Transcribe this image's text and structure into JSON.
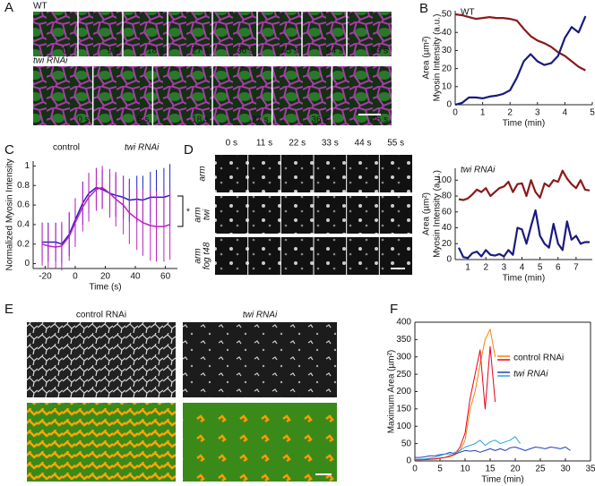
{
  "panels": {
    "A": {
      "letter": "A",
      "rows": [
        {
          "label": "WT",
          "times": [
            "0 s",
            "9 s",
            "18 s",
            "27 s",
            "36 s",
            "45 s",
            "54 s",
            "63 s"
          ]
        },
        {
          "label": "twi RNAi",
          "times": [
            "0 s",
            "9 s",
            "18 s",
            "27 s",
            "36 s",
            "45 s"
          ]
        }
      ]
    },
    "D": {
      "letter": "D",
      "times": [
        "0 s",
        "11 s",
        "22 s",
        "33 s",
        "44 s",
        "55 s"
      ],
      "rows": [
        [
          "arm"
        ],
        [
          "arm",
          "twi"
        ],
        [
          "arm",
          "fog t48"
        ]
      ]
    },
    "E": {
      "letter": "E",
      "columns": [
        "control RNAi",
        "twi RNAi"
      ]
    }
  },
  "chart_data": [
    {
      "type": "line",
      "panel": "B",
      "title": "WT",
      "xlabel": "Time (min)",
      "legend": "left",
      "x": [
        0,
        0.25,
        0.5,
        0.75,
        1,
        1.25,
        1.5,
        1.75,
        2,
        2.25,
        2.5,
        2.75,
        3,
        3.25,
        3.5,
        3.75,
        4,
        4.25,
        4.5,
        4.75
      ],
      "series": [
        {
          "name": "Area (µm²)",
          "color": "#8b1a1a",
          "values": [
            50,
            49.5,
            48.5,
            47.5,
            48,
            48.5,
            48,
            48,
            47.5,
            46.5,
            42,
            38,
            35.5,
            34,
            32,
            29,
            27,
            24,
            21,
            19
          ]
        },
        {
          "name": "Myosin Intensity (a.u.)",
          "color": "#1a1a80",
          "values": [
            0,
            1,
            4,
            4,
            3.5,
            4.5,
            5,
            6,
            8,
            15,
            24,
            28,
            24,
            22,
            23,
            27,
            37,
            43,
            40,
            49
          ]
        }
      ],
      "xlim": [
        0,
        5
      ],
      "xticks": [
        0,
        1,
        2,
        3,
        4,
        5
      ],
      "ylim": [
        0,
        52
      ],
      "yticks": [
        0,
        10,
        20,
        30,
        40,
        50
      ]
    },
    {
      "type": "line",
      "title": "twi RNAi",
      "xlabel": "Time (min)",
      "legend": "left",
      "x": [
        0.5,
        0.75,
        1,
        1.25,
        1.5,
        1.75,
        2,
        2.25,
        2.5,
        2.75,
        3,
        3.25,
        3.5,
        3.75,
        4,
        4.25,
        4.5,
        4.75,
        5,
        5.25,
        5.5,
        5.75,
        6,
        6.25,
        6.5,
        6.75,
        7,
        7.25,
        7.5,
        7.75
      ],
      "series": [
        {
          "name": "Area (µm²)",
          "color": "#8b1a1a",
          "values": [
            76,
            75,
            77,
            82,
            88,
            85,
            90,
            80,
            85,
            90,
            92,
            98,
            85,
            95,
            96,
            80,
            100,
            85,
            78,
            96,
            92,
            100,
            98,
            112,
            102,
            95,
            90,
            100,
            88,
            87
          ]
        },
        {
          "name": "Myosin Intensity (a.u.)",
          "color": "#1a1a80",
          "values": [
            15,
            3,
            2,
            8,
            10,
            4,
            12,
            6,
            5,
            7,
            4,
            12,
            6,
            40,
            38,
            20,
            42,
            62,
            30,
            20,
            15,
            45,
            20,
            12,
            48,
            25,
            30,
            20,
            22,
            22
          ]
        }
      ],
      "xlim": [
        0.3,
        7.9
      ],
      "xticks": [
        1,
        2,
        3,
        4,
        5,
        6,
        7
      ],
      "ylim": [
        0,
        115
      ],
      "yticks": [
        0,
        20,
        40,
        60,
        80,
        100
      ]
    },
    {
      "type": "line",
      "panel": "C",
      "xlabel": "Time (s)",
      "ylabel": "Normalized Myosin Intensity",
      "legend": "top",
      "annotation": "*",
      "x": [
        -22,
        -18,
        -13,
        -9,
        -4,
        0,
        5,
        9,
        14,
        18,
        23,
        27,
        32,
        36,
        41,
        45,
        50,
        54,
        59,
        63
      ],
      "series": [
        {
          "name": "control",
          "color": "#2020c0",
          "values": [
            0.22,
            0.22,
            0.22,
            0.2,
            0.3,
            0.45,
            0.62,
            0.72,
            0.78,
            0.76,
            0.72,
            0.7,
            0.68,
            0.65,
            0.66,
            0.65,
            0.68,
            0.68,
            0.68,
            0.7
          ],
          "errors": [
            0.2,
            0.2,
            0.2,
            0.2,
            0.22,
            0.22,
            0.22,
            0.2,
            0.2,
            0.2,
            0.2,
            0.22,
            0.22,
            0.22,
            0.24,
            0.25,
            0.26,
            0.28,
            0.3,
            0.32
          ]
        },
        {
          "name": "twi RNAi",
          "color": "#c020c0",
          "values": [
            0.2,
            0.18,
            0.17,
            0.18,
            0.28,
            0.42,
            0.58,
            0.68,
            0.76,
            0.78,
            0.72,
            0.66,
            0.6,
            0.52,
            0.46,
            0.42,
            0.39,
            0.38,
            0.38,
            0.4
          ],
          "errors": [
            0.22,
            0.22,
            0.22,
            0.25,
            0.25,
            0.25,
            0.25,
            0.25,
            0.22,
            0.22,
            0.25,
            0.28,
            0.3,
            0.32,
            0.32,
            0.34,
            0.36,
            0.36,
            0.36,
            0.36
          ]
        }
      ],
      "xlim": [
        -28,
        68
      ],
      "xticks": [
        -20,
        0,
        20,
        40,
        60
      ],
      "ylim": [
        -0.05,
        1.05
      ],
      "yticks": [
        0,
        0.2,
        0.4,
        0.6,
        0.8,
        1
      ]
    },
    {
      "type": "line",
      "panel": "F",
      "xlabel": "Time (min)",
      "ylabel": "Maximum Area (µm²)",
      "legend": "upper left",
      "box": true,
      "series": [
        {
          "name": "control RNAi",
          "colors": [
            "#ff8000",
            "#e8001c"
          ],
          "traces": [
            {
              "x": [
                0,
                1,
                2,
                3,
                4,
                5,
                6,
                7,
                8,
                9,
                10,
                11,
                12,
                13,
                14,
                15,
                16
              ],
              "values": [
                5,
                5,
                5,
                5,
                5,
                8,
                10,
                12,
                18,
                30,
                60,
                150,
                200,
                280,
                350,
                380,
                300
              ]
            },
            {
              "x": [
                0,
                1,
                2,
                3,
                4,
                5,
                6,
                7,
                8,
                9,
                10,
                11,
                12,
                13,
                14,
                15,
                16
              ],
              "values": [
                3,
                3,
                4,
                5,
                6,
                8,
                10,
                15,
                20,
                40,
                80,
                180,
                250,
                320,
                150,
                330,
                170
              ]
            }
          ]
        },
        {
          "name": "twi RNAi",
          "colors": [
            "#2040c0",
            "#30a0e0"
          ],
          "traces": [
            {
              "x": [
                0,
                1,
                2,
                3,
                4,
                5,
                6,
                7,
                8,
                9,
                10,
                11,
                12,
                13,
                14,
                15,
                16,
                17,
                18,
                19,
                20,
                21,
                22,
                23,
                24,
                25,
                26,
                27,
                28,
                29,
                30,
                31
              ],
              "values": [
                10,
                10,
                12,
                15,
                15,
                18,
                20,
                25,
                20,
                25,
                30,
                28,
                30,
                25,
                30,
                35,
                30,
                35,
                30,
                38,
                40,
                35,
                30,
                35,
                40,
                38,
                35,
                40,
                38,
                35,
                40,
                30
              ]
            },
            {
              "x": [
                0,
                1,
                2,
                3,
                4,
                5,
                6,
                7,
                8,
                9,
                10,
                11,
                12,
                13,
                14,
                15,
                16,
                17,
                18,
                19,
                20,
                21
              ],
              "values": [
                5,
                5,
                6,
                8,
                10,
                15,
                20,
                20,
                25,
                30,
                40,
                45,
                50,
                60,
                45,
                55,
                60,
                50,
                55,
                60,
                70,
                50
              ]
            }
          ]
        }
      ],
      "xlim": [
        0,
        35
      ],
      "xticks": [
        0,
        5,
        10,
        15,
        20,
        25,
        30,
        35
      ],
      "ylim": [
        0,
        400
      ],
      "yticks": [
        0,
        50,
        100,
        150,
        200,
        250,
        300,
        350,
        400
      ]
    }
  ]
}
